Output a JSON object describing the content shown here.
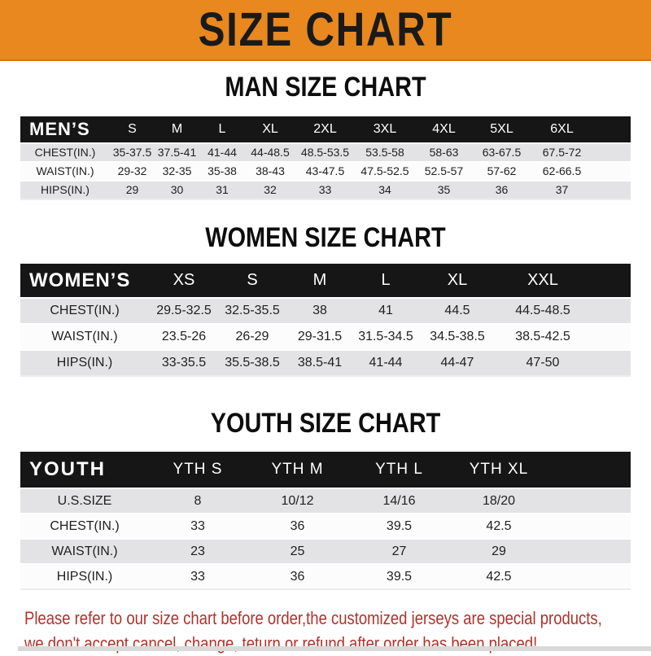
{
  "banner": {
    "title": "SIZE CHART"
  },
  "sections": [
    {
      "heading": "MAN SIZE CHART",
      "table": {
        "header_label": "MEN’S",
        "columns": [
          "S",
          "M",
          "L",
          "XL",
          "2XL",
          "3XL",
          "4XL",
          "5XL",
          "6XL"
        ],
        "rows": [
          {
            "label": "CHEST(IN.)",
            "values": [
              "35-37.5",
              "37.5-41",
              "41-44",
              "44-48.5",
              "48.5-53.5",
              "53.5-58",
              "58-63",
              "63-67.5",
              "67.5-72"
            ]
          },
          {
            "label": "WAIST(IN.)",
            "values": [
              "29-32",
              "32-35",
              "35-38",
              "38-43",
              "43-47.5",
              "47.5-52.5",
              "52.5-57",
              "57-62",
              "62-66.5"
            ]
          },
          {
            "label": "HIPS(IN.)",
            "values": [
              "29",
              "30",
              "31",
              "32",
              "33",
              "34",
              "35",
              "36",
              "37"
            ]
          }
        ]
      }
    },
    {
      "heading": "WOMEN SIZE CHART",
      "table": {
        "header_label": "WOMEN’S",
        "columns": [
          "XS",
          "S",
          "M",
          "L",
          "XL",
          "XXL"
        ],
        "rows": [
          {
            "label": "CHEST(IN.)",
            "values": [
              "29.5-32.5",
              "32.5-35.5",
              "38",
              "41",
              "44.5",
              "44.5-48.5"
            ]
          },
          {
            "label": "WAIST(IN.)",
            "values": [
              "23.5-26",
              "26-29",
              "29-31.5",
              "31.5-34.5",
              "34.5-38.5",
              "38.5-42.5"
            ]
          },
          {
            "label": "HIPS(IN.)",
            "values": [
              "33-35.5",
              "35.5-38.5",
              "38.5-41",
              "41-44",
              "44-47",
              "47-50"
            ]
          }
        ]
      }
    },
    {
      "heading": "YOUTH SIZE CHART",
      "table": {
        "header_label": "YOUTH",
        "columns": [
          "YTH S",
          "YTH M",
          "YTH L",
          "YTH XL"
        ],
        "rows": [
          {
            "label": "U.S.SIZE",
            "values": [
              "8",
              "10/12",
              "14/16",
              "18/20"
            ]
          },
          {
            "label": "CHEST(IN.)",
            "values": [
              "33",
              "36",
              "39.5",
              "42.5"
            ]
          },
          {
            "label": "WAIST(IN.)",
            "values": [
              "23",
              "25",
              "27",
              "29"
            ]
          },
          {
            "label": "HIPS(IN.)",
            "values": [
              "33",
              "36",
              "39.5",
              "42.5"
            ]
          }
        ]
      }
    }
  ],
  "footer_note": {
    "line1": "Please refer to our size chart before order,the customized jerseys are special products,",
    "line2": "we don't accept cancel, change, teturn or refund after order has been placed!"
  },
  "colors": {
    "banner_bg": "#E8881F",
    "banner_edge": "#D3770F",
    "banner_text": "#1A1A1A",
    "header_bar": "#161616",
    "header_text": "#FFFFFF",
    "stripe": "#E3E3E5",
    "note_red": "#B0322B",
    "bottom_strip": "#D9D9D9"
  }
}
